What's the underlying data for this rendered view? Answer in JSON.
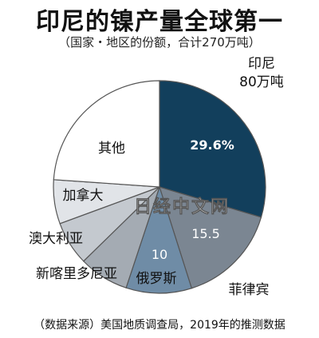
{
  "header": {
    "title": "印尼的镍产量全球第一",
    "subtitle": "（国家・地区的份额，合计270万吨）"
  },
  "footer": {
    "source": "（数据来源）美国地质调查局，2019年的推测数据"
  },
  "watermark": "日经中文网",
  "chart_data": {
    "type": "pie",
    "title": "印尼的镍产量全球第一",
    "subtitle": "（国家・地区的份额，合计270万吨）",
    "total": "270万吨",
    "slices": [
      {
        "name": "印尼",
        "value": 29.6,
        "value_label": "29.6%",
        "note": "80万吨",
        "color": "#123f5c",
        "highlight": true
      },
      {
        "name": "菲律宾",
        "value": 15.5,
        "value_label": "15.5",
        "color": "#7b8692"
      },
      {
        "name": "俄罗斯",
        "value": 10,
        "value_label": "10",
        "color": "#6f8ca6"
      },
      {
        "name": "新喀里多尼亚",
        "value": 7.6,
        "value_label": "",
        "color": "#a4abb3"
      },
      {
        "name": "澳大利亚",
        "value": 6.7,
        "value_label": "",
        "color": "#c4c9cf"
      },
      {
        "name": "加拿大",
        "value": 6.7,
        "value_label": "",
        "color": "#e1e4e8"
      },
      {
        "name": "其他",
        "value": 23.9,
        "value_label": "",
        "color": "#ffffff"
      }
    ]
  }
}
